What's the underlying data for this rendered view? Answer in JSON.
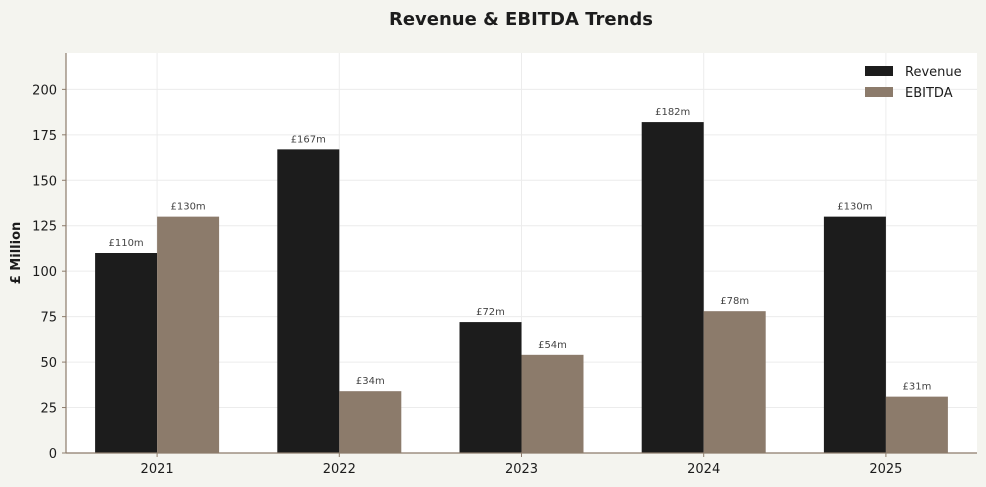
{
  "chart_data": {
    "type": "bar",
    "title": "Revenue & EBITDA Trends",
    "xlabel": "",
    "ylabel": "£ Million",
    "categories": [
      "2021",
      "2022",
      "2023",
      "2024",
      "2025"
    ],
    "series": [
      {
        "name": "Revenue",
        "values": [
          110,
          167,
          72,
          182,
          130
        ],
        "labels": [
          "£110m",
          "£167m",
          "£72m",
          "£182m",
          "£130m"
        ],
        "color": "#1c1c1c"
      },
      {
        "name": "EBITDA",
        "values": [
          130,
          34,
          54,
          78,
          31
        ],
        "labels": [
          "£130m",
          "£34m",
          "£54m",
          "£78m",
          "£31m"
        ],
        "color": "#8c7b6b"
      }
    ],
    "ylim": [
      0,
      220
    ],
    "yticks": [
      0,
      25,
      50,
      75,
      100,
      125,
      150,
      175,
      200
    ],
    "grid": true,
    "legend_position": "top-right"
  },
  "colors": {
    "page_background": "#f4f4ef",
    "plot_background": "#ffffff",
    "axis": "#8c7b6b"
  }
}
